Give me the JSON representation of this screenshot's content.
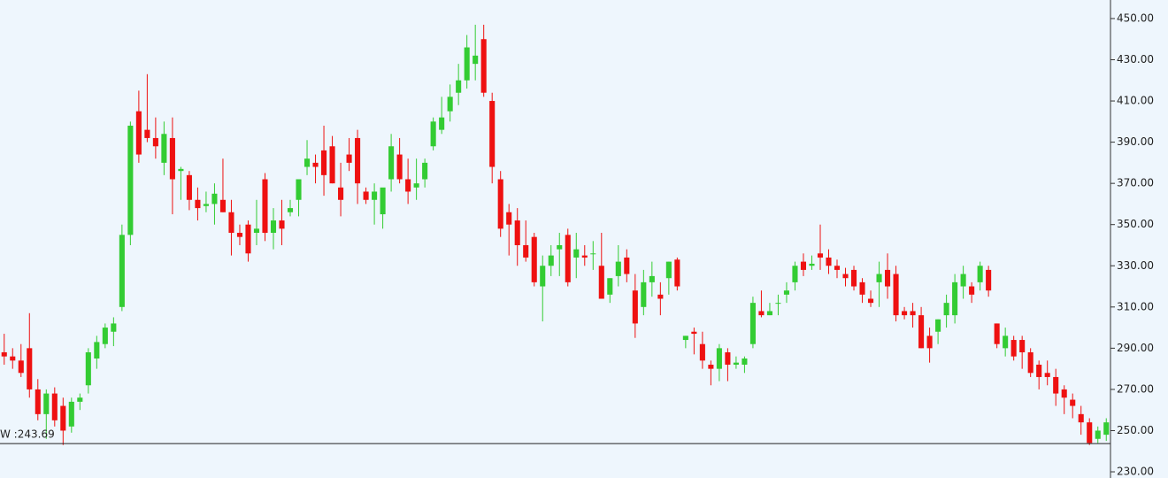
{
  "chart_data": {
    "type": "candlestick",
    "up_color": "#33cc33",
    "down_color": "#ee1111",
    "open": [
      288,
      286,
      284,
      290,
      270,
      258,
      268,
      262,
      252,
      264,
      272,
      285,
      292,
      298,
      310,
      345,
      405,
      396,
      392,
      380,
      392,
      376,
      374,
      362,
      359,
      360,
      362,
      356,
      346,
      350,
      346,
      372,
      346,
      352,
      356,
      362,
      378,
      380,
      386,
      388,
      368,
      384,
      392,
      366,
      362,
      355,
      372,
      384,
      372,
      368,
      372,
      388,
      396,
      405,
      414,
      420,
      428,
      440,
      410,
      372,
      356,
      352,
      340,
      344,
      320,
      330,
      338,
      345,
      334,
      335,
      336,
      330,
      316,
      325,
      334,
      318,
      310,
      322,
      316,
      324,
      333,
      294,
      298,
      292,
      282,
      280,
      288,
      282,
      282,
      292,
      308,
      306,
      312,
      316,
      322,
      332,
      330,
      336,
      334,
      330,
      326,
      328,
      322,
      314,
      322,
      328,
      326,
      308,
      308,
      306,
      296,
      298,
      306,
      306,
      320,
      320,
      322,
      328,
      302,
      290,
      294,
      294,
      288,
      282,
      278,
      276,
      270,
      265,
      258,
      254,
      246,
      248
    ],
    "high": [
      297,
      290,
      292,
      307,
      275,
      270,
      271,
      266,
      266,
      268,
      290,
      296,
      302,
      305,
      350,
      400,
      415,
      423,
      402,
      400,
      402,
      378,
      376,
      368,
      366,
      370,
      382,
      362,
      350,
      352,
      362,
      375,
      358,
      362,
      362,
      372,
      391,
      384,
      398,
      393,
      380,
      392,
      396,
      368,
      370,
      366,
      394,
      392,
      382,
      382,
      382,
      402,
      412,
      418,
      428,
      442,
      447,
      447,
      414,
      376,
      360,
      358,
      352,
      346,
      335,
      340,
      346,
      348,
      346,
      340,
      342,
      346,
      324,
      340,
      338,
      326,
      328,
      332,
      322,
      332,
      334,
      296,
      300,
      298,
      284,
      292,
      290,
      286,
      286,
      315,
      318,
      312,
      316,
      322,
      332,
      336,
      335,
      350,
      338,
      333,
      329,
      330,
      324,
      318,
      332,
      336,
      330,
      310,
      312,
      310,
      300,
      304,
      316,
      326,
      330,
      322,
      332,
      330,
      302,
      300,
      296,
      296,
      290,
      284,
      284,
      280,
      272,
      268,
      262,
      256,
      252,
      256
    ],
    "low": [
      282,
      280,
      276,
      266,
      255,
      246,
      252,
      243,
      249,
      260,
      268,
      280,
      290,
      291,
      308,
      340,
      380,
      390,
      382,
      374,
      355,
      362,
      357,
      352,
      356,
      350,
      356,
      335,
      340,
      332,
      340,
      342,
      338,
      340,
      354,
      354,
      374,
      370,
      364,
      370,
      354,
      376,
      360,
      360,
      350,
      348,
      366,
      370,
      360,
      362,
      368,
      386,
      394,
      400,
      408,
      416,
      420,
      412,
      370,
      344,
      335,
      330,
      332,
      320,
      303,
      325,
      325,
      320,
      324,
      330,
      328,
      314,
      312,
      320,
      322,
      295,
      306,
      315,
      306,
      316,
      318,
      290,
      287,
      280,
      272,
      274,
      274,
      280,
      278,
      290,
      305,
      306,
      306,
      312,
      318,
      325,
      328,
      328,
      326,
      324,
      320,
      318,
      312,
      310,
      310,
      314,
      303,
      304,
      300,
      290,
      283,
      292,
      300,
      302,
      314,
      312,
      318,
      315,
      290,
      286,
      284,
      280,
      276,
      270,
      272,
      262,
      258,
      256,
      248,
      243,
      244,
      245
    ],
    "close": [
      286,
      284,
      278,
      270,
      258,
      268,
      255,
      250,
      264,
      266,
      288,
      293,
      300,
      302,
      345,
      398,
      384,
      392,
      388,
      394,
      372,
      377,
      362,
      358,
      360,
      365,
      356,
      346,
      344,
      336,
      348,
      346,
      352,
      348,
      358,
      372,
      382,
      378,
      374,
      370,
      362,
      380,
      370,
      362,
      366,
      368,
      388,
      372,
      366,
      370,
      380,
      400,
      402,
      412,
      420,
      436,
      432,
      414,
      378,
      348,
      350,
      340,
      334,
      322,
      330,
      335,
      340,
      322,
      338,
      334,
      336,
      314,
      324,
      332,
      326,
      302,
      322,
      325,
      314,
      332,
      320,
      296,
      297,
      284,
      280,
      290,
      282,
      283,
      285,
      312,
      306,
      308,
      312,
      318,
      330,
      328,
      331,
      334,
      330,
      328,
      324,
      320,
      316,
      312,
      326,
      320,
      306,
      306,
      306,
      290,
      290,
      304,
      312,
      322,
      326,
      316,
      330,
      318,
      292,
      296,
      286,
      288,
      278,
      276,
      276,
      268,
      266,
      262,
      254,
      244,
      250,
      254
    ],
    "ylim": [
      227,
      459
    ],
    "yticks": [
      {
        "value": 230,
        "label": "230.00"
      },
      {
        "value": 250,
        "label": "250.00"
      },
      {
        "value": 270,
        "label": "270.00"
      },
      {
        "value": 290,
        "label": "290.00"
      },
      {
        "value": 310,
        "label": "310.00"
      },
      {
        "value": 330,
        "label": "330.00"
      },
      {
        "value": 350,
        "label": "350.00"
      },
      {
        "value": 370,
        "label": "370.00"
      },
      {
        "value": 390,
        "label": "390.00"
      },
      {
        "value": 410,
        "label": "410.00"
      },
      {
        "value": 430,
        "label": "430.00"
      },
      {
        "value": 450,
        "label": "450.00"
      }
    ],
    "reference_line": {
      "value": 243.69,
      "label": "W :243.69"
    }
  }
}
